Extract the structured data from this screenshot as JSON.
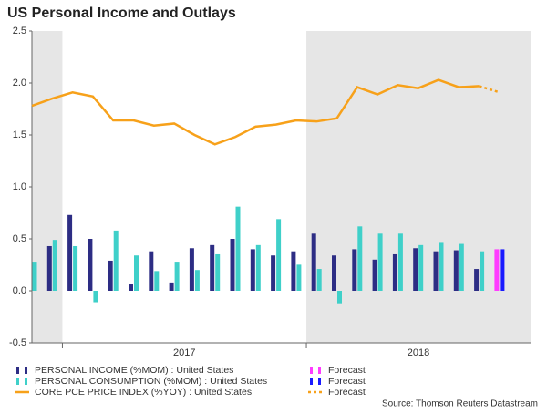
{
  "chart_data": {
    "type": "bar",
    "title": "US Personal Income and Outlays",
    "source": "Source: Thomson Reuters Datastream",
    "categories": [
      null,
      null,
      null,
      null,
      null,
      null,
      null,
      null,
      null,
      null,
      null,
      null,
      null,
      null,
      null,
      null,
      null,
      null,
      null,
      null,
      null,
      null,
      null,
      null
    ],
    "x_groups": [
      "2017",
      "2018"
    ],
    "ylim": [
      -0.5,
      2.5
    ],
    "yticks": [
      {
        "value": -0.5,
        "label": "-0.5"
      },
      {
        "value": 0,
        "label": "0.0"
      },
      {
        "value": 0.5,
        "label": "0.5"
      },
      {
        "value": 1,
        "label": "1.0"
      },
      {
        "value": 1.5,
        "label": "1.5"
      },
      {
        "value": 2,
        "label": "2.0"
      },
      {
        "value": 2.5,
        "label": "2.5"
      }
    ],
    "grid": false,
    "series": [
      {
        "name": "PERSONAL INCOME (%MOM) : United States",
        "kind": "bar",
        "slot": 0,
        "color": "#2d2d84",
        "values": [
          null,
          0.43,
          0.73,
          0.5,
          0.29,
          0.07,
          0.38,
          0.08,
          0.41,
          0.44,
          0.5,
          0.4,
          0.34,
          0.38,
          0.55,
          0.34,
          0.4,
          0.3,
          0.36,
          0.41,
          0.38,
          0.39,
          0.21,
          null
        ]
      },
      {
        "name": "PERSONAL CONSUMPTION (%MOM) : United States",
        "kind": "bar",
        "slot": 1,
        "color": "#3fd0c9",
        "values": [
          0.28,
          0.49,
          0.43,
          -0.11,
          0.58,
          0.34,
          0.19,
          0.28,
          0.2,
          0.36,
          0.81,
          0.44,
          0.69,
          0.26,
          0.21,
          -0.12,
          0.62,
          0.55,
          0.55,
          0.44,
          0.47,
          0.46,
          0.38,
          null
        ]
      },
      {
        "name": "CORE PCE PRICE INDEX (%YOY) : United States",
        "kind": "line",
        "color": "#f7a11a",
        "values": [
          1.78,
          1.85,
          1.91,
          1.87,
          1.64,
          1.64,
          1.59,
          1.61,
          1.5,
          1.41,
          1.48,
          1.58,
          1.6,
          1.64,
          1.63,
          1.66,
          1.96,
          1.89,
          1.98,
          1.95,
          2.03,
          1.96,
          1.97,
          null
        ]
      },
      {
        "name": "Forecast",
        "kind": "bar",
        "slot": 0,
        "color": "#ff3cff",
        "values": [
          null,
          null,
          null,
          null,
          null,
          null,
          null,
          null,
          null,
          null,
          null,
          null,
          null,
          null,
          null,
          null,
          null,
          null,
          null,
          null,
          null,
          null,
          null,
          0.4
        ]
      },
      {
        "name": "Forecast",
        "kind": "bar",
        "slot": 1,
        "color": "#1a1aff",
        "values": [
          null,
          null,
          null,
          null,
          null,
          null,
          null,
          null,
          null,
          null,
          null,
          null,
          null,
          null,
          null,
          null,
          null,
          null,
          null,
          null,
          null,
          null,
          null,
          0.4
        ]
      },
      {
        "name": "Forecast",
        "kind": "line",
        "dashed": true,
        "color": "#f7a11a",
        "values": [
          null,
          null,
          null,
          null,
          null,
          null,
          null,
          null,
          null,
          null,
          null,
          null,
          null,
          null,
          null,
          null,
          null,
          null,
          null,
          null,
          null,
          null,
          1.97,
          1.91
        ]
      }
    ]
  }
}
